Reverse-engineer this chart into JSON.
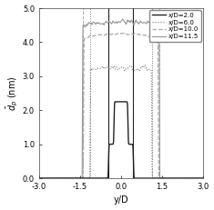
{
  "title": "",
  "xlabel": "y/D",
  "ylabel": "$\\bar{d}_p$ (nm)",
  "xlim": [
    -3.0,
    3.0
  ],
  "ylim": [
    0.0,
    5.0
  ],
  "xticks": [
    -3.0,
    -1.5,
    0.0,
    1.5,
    3.0
  ],
  "yticks": [
    0.0,
    1.0,
    2.0,
    3.0,
    4.0,
    5.0
  ],
  "xticklabels": [
    "-3.0",
    "-1.5",
    "0.0",
    "1.5",
    "3.0"
  ],
  "yticklabels": [
    "0.0",
    "1.0",
    "2.0",
    "3.0",
    "4.0",
    "5.0"
  ],
  "legend": [
    "x/D=2.0",
    "x/D=6.0",
    "x/D=10.0",
    "x/D=11.5"
  ],
  "jet_boundary": 1.4,
  "background_color": "#ffffff"
}
